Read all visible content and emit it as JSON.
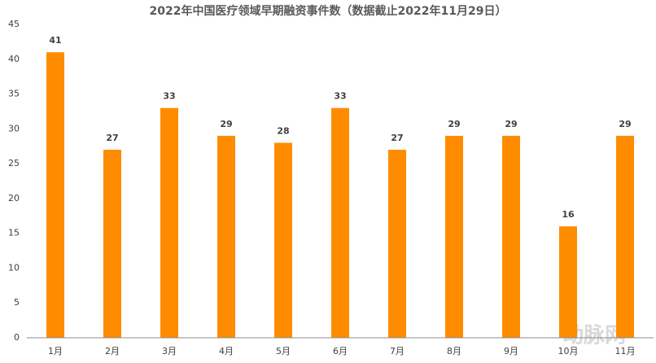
{
  "chart_data": {
    "type": "bar",
    "title": "2022年中国医疗领域早期融资事件数（数据截止2022年11月29日）",
    "categories": [
      "1月",
      "2月",
      "3月",
      "4月",
      "5月",
      "6月",
      "7月",
      "8月",
      "9月",
      "10月",
      "11月"
    ],
    "values": [
      41,
      27,
      33,
      29,
      28,
      33,
      27,
      29,
      29,
      16,
      29
    ],
    "color": "#ff8c00",
    "ylim": [
      0,
      45
    ],
    "yticks": [
      0,
      5,
      10,
      15,
      20,
      25,
      30,
      35,
      40,
      45
    ],
    "grid": false,
    "watermark": "动脉网"
  }
}
